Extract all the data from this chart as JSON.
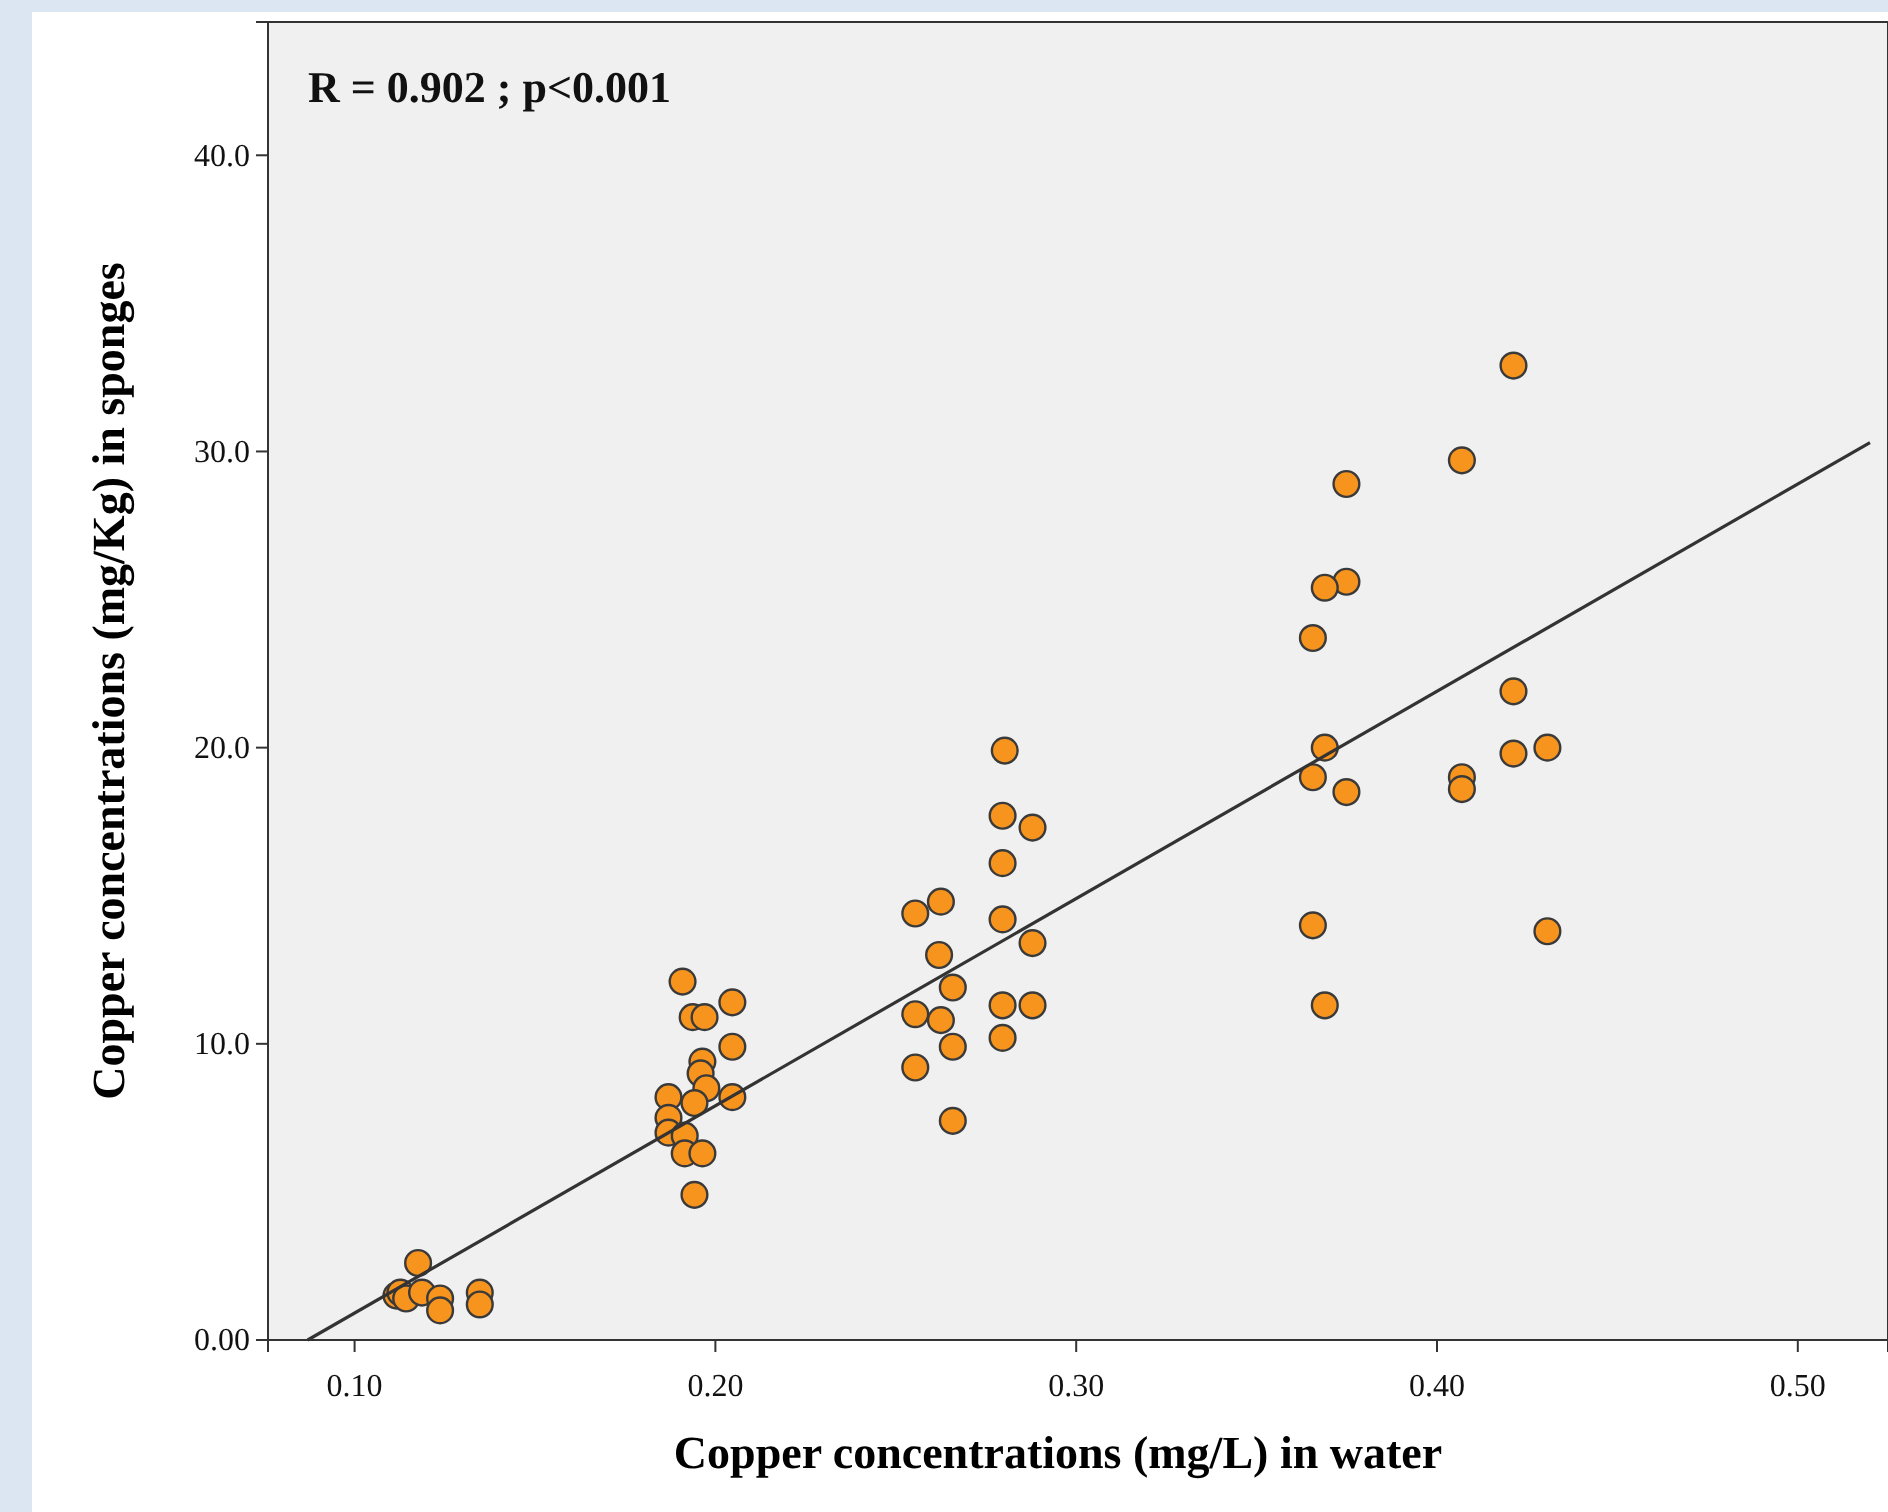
{
  "chart_data": {
    "type": "scatter",
    "xlabel": "Copper concentrations (mg/L) in water",
    "ylabel": "Copper concentrations (mg/Kg) in sponges",
    "annotations": [
      "R = 0.902 ; p<0.001"
    ],
    "xlim": [
      0.076,
      0.525
    ],
    "ylim": [
      0,
      44.5
    ],
    "xticks": [
      {
        "value": 0.1,
        "label": "0.10"
      },
      {
        "value": 0.2,
        "label": "0.20"
      },
      {
        "value": 0.3,
        "label": "0.30"
      },
      {
        "value": 0.4,
        "label": "0.40"
      },
      {
        "value": 0.5,
        "label": "0.50"
      }
    ],
    "yticks": [
      {
        "value": 0,
        "label": "0.00"
      },
      {
        "value": 10,
        "label": "10.0"
      },
      {
        "value": 20,
        "label": "20.0"
      },
      {
        "value": 30,
        "label": "30.0"
      },
      {
        "value": 40,
        "label": "40.0"
      }
    ],
    "grid": false,
    "series": [
      {
        "color": "#f7941d",
        "marker": "circle",
        "x": [
          0.1116,
          0.1127,
          0.1143,
          0.1176,
          0.1187,
          0.1237,
          0.1237,
          0.1347,
          0.1347,
          0.1909,
          0.2047,
          0.1937,
          0.197,
          0.2047,
          0.1964,
          0.1959,
          0.1975,
          0.187,
          0.2047,
          0.1942,
          0.187,
          0.187,
          0.1915,
          0.1915,
          0.1964,
          0.1942,
          0.2802,
          0.2796,
          0.2879,
          0.2796,
          0.2554,
          0.2625,
          0.2796,
          0.2879,
          0.262,
          0.2658,
          0.2554,
          0.2625,
          0.2796,
          0.2879,
          0.2658,
          0.2796,
          0.2554,
          0.2658,
          0.4212,
          0.4069,
          0.3749,
          0.3749,
          0.3689,
          0.3656,
          0.4212,
          0.3689,
          0.4212,
          0.4306,
          0.3656,
          0.3749,
          0.4069,
          0.4069,
          0.3656,
          0.4306,
          0.3689
        ],
        "values": [
          1.5,
          1.6,
          1.4,
          2.6,
          1.6,
          1.4,
          1.0,
          1.6,
          1.2,
          12.1,
          11.4,
          10.9,
          10.9,
          9.9,
          9.4,
          9.0,
          8.5,
          8.2,
          8.2,
          8.0,
          7.5,
          7.0,
          6.9,
          6.3,
          6.3,
          4.9,
          19.9,
          17.7,
          17.3,
          16.1,
          14.4,
          14.8,
          14.2,
          13.4,
          13.0,
          11.9,
          11.0,
          10.8,
          11.3,
          11.3,
          9.9,
          10.2,
          9.2,
          7.4,
          32.9,
          29.7,
          28.9,
          25.6,
          25.4,
          23.7,
          21.9,
          20.0,
          19.8,
          20.0,
          19.0,
          18.5,
          19.0,
          18.6,
          14.0,
          13.8,
          11.3
        ]
      },
      {
        "type": "line",
        "color": "#333333",
        "marker": "none",
        "x": [
          0.087,
          0.52
        ],
        "values": [
          0,
          30.3
        ]
      }
    ]
  }
}
